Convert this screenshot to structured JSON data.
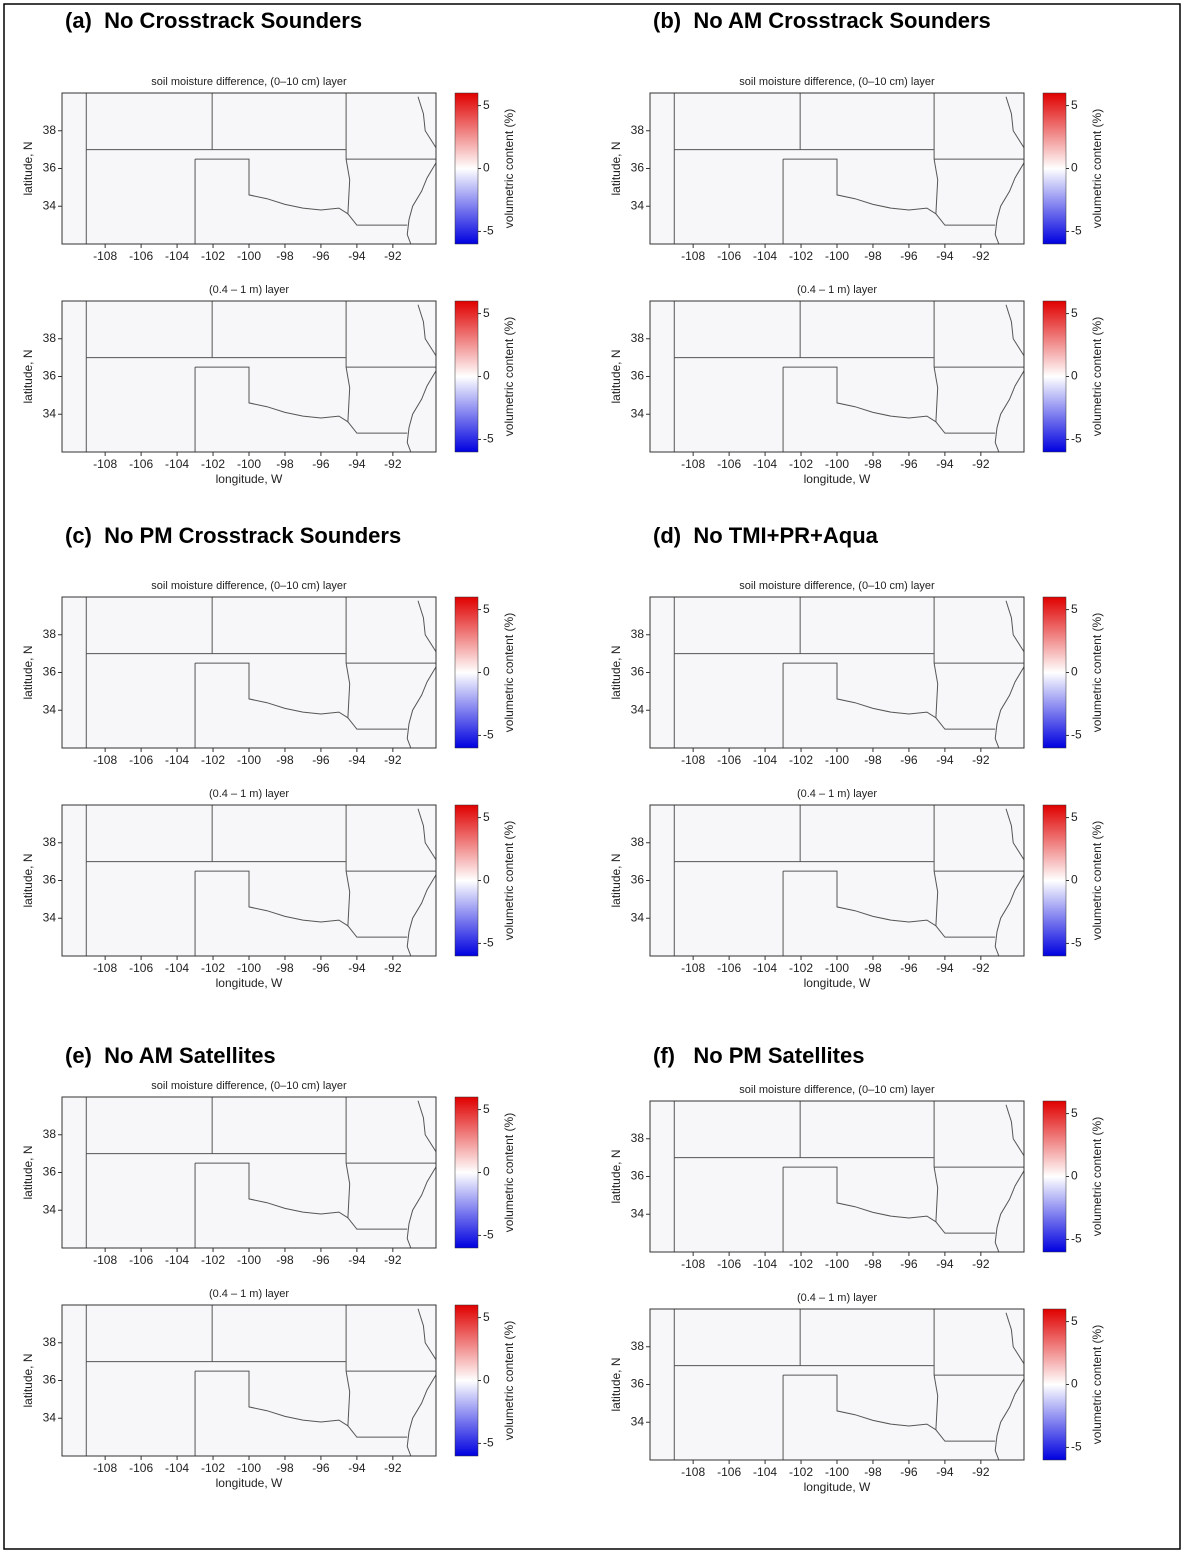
{
  "panels": [
    {
      "title": "(a)  No Crosstrack Sounders",
      "maps": [
        {
          "title": "soil moisture difference, (0–10 cm) layer",
          "ylabel": "latitude, N",
          "xlim": [
            -110.4,
            -89.6
          ],
          "xticks": [
            -108,
            -106,
            -104,
            -102,
            -100,
            -98,
            -96,
            -94,
            -92
          ],
          "ylim": [
            32,
            40
          ],
          "yticks": [
            34,
            36,
            38
          ],
          "colorbar": {
            "label": "volumetric content (%)",
            "lim": [
              -6,
              6
            ],
            "ticks": [
              -5,
              0,
              5
            ]
          }
        },
        {
          "title": "(0.4 – 1 m) layer",
          "ylabel": "latitude, N",
          "xlabel": "longitude, W",
          "xlim": [
            -110.4,
            -89.6
          ],
          "xticks": [
            -108,
            -106,
            -104,
            -102,
            -100,
            -98,
            -96,
            -94,
            -92
          ],
          "ylim": [
            32,
            40
          ],
          "yticks": [
            34,
            36,
            38
          ],
          "colorbar": {
            "label": "volumetric content (%)",
            "lim": [
              -6,
              6
            ],
            "ticks": [
              -5,
              0,
              5
            ]
          }
        }
      ]
    },
    {
      "title": "(b)  No AM Crosstrack Sounders",
      "maps": [
        {
          "title": "soil moisture difference, (0–10 cm) layer",
          "ylabel": "latitude, N",
          "xlim": [
            -110.4,
            -89.6
          ],
          "xticks": [
            -108,
            -106,
            -104,
            -102,
            -100,
            -98,
            -96,
            -94,
            -92
          ],
          "ylim": [
            32,
            40
          ],
          "yticks": [
            34,
            36,
            38
          ],
          "colorbar": {
            "label": "volumetric content (%)",
            "lim": [
              -6,
              6
            ],
            "ticks": [
              -5,
              0,
              5
            ]
          }
        },
        {
          "title": "(0.4 – 1 m) layer",
          "ylabel": "latitude, N",
          "xlabel": "longitude, W",
          "xlim": [
            -110.4,
            -89.6
          ],
          "xticks": [
            -108,
            -106,
            -104,
            -102,
            -100,
            -98,
            -96,
            -94,
            -92
          ],
          "ylim": [
            32,
            40
          ],
          "yticks": [
            34,
            36,
            38
          ],
          "colorbar": {
            "label": "volumetric content (%)",
            "lim": [
              -6,
              6
            ],
            "ticks": [
              -5,
              0,
              5
            ]
          }
        }
      ]
    },
    {
      "title": "(c)  No PM Crosstrack Sounders",
      "maps": [
        {
          "title": "soil moisture difference, (0–10 cm) layer",
          "ylabel": "latitude, N",
          "xlim": [
            -110.4,
            -89.6
          ],
          "xticks": [
            -108,
            -106,
            -104,
            -102,
            -100,
            -98,
            -96,
            -94,
            -92
          ],
          "ylim": [
            32,
            40
          ],
          "yticks": [
            34,
            36,
            38
          ],
          "colorbar": {
            "label": "volumetric content (%)",
            "lim": [
              -6,
              6
            ],
            "ticks": [
              -5,
              0,
              5
            ]
          }
        },
        {
          "title": "(0.4 – 1 m) layer",
          "ylabel": "latitude, N",
          "xlabel": "longitude, W",
          "xlim": [
            -110.4,
            -89.6
          ],
          "xticks": [
            -108,
            -106,
            -104,
            -102,
            -100,
            -98,
            -96,
            -94,
            -92
          ],
          "ylim": [
            32,
            40
          ],
          "yticks": [
            34,
            36,
            38
          ],
          "colorbar": {
            "label": "volumetric content (%)",
            "lim": [
              -6,
              6
            ],
            "ticks": [
              -5,
              0,
              5
            ]
          }
        }
      ]
    },
    {
      "title": "(d)  No TMI+PR+Aqua",
      "maps": [
        {
          "title": "soil moisture difference, (0–10 cm) layer",
          "ylabel": "latitude, N",
          "xlim": [
            -110.4,
            -89.6
          ],
          "xticks": [
            -108,
            -106,
            -104,
            -102,
            -100,
            -98,
            -96,
            -94,
            -92
          ],
          "ylim": [
            32,
            40
          ],
          "yticks": [
            34,
            36,
            38
          ],
          "colorbar": {
            "label": "volumetric content (%)",
            "lim": [
              -6,
              6
            ],
            "ticks": [
              -5,
              0,
              5
            ]
          }
        },
        {
          "title": "(0.4 – 1 m) layer",
          "ylabel": "latitude, N",
          "xlabel": "longitude, W",
          "xlim": [
            -110.4,
            -89.6
          ],
          "xticks": [
            -108,
            -106,
            -104,
            -102,
            -100,
            -98,
            -96,
            -94,
            -92
          ],
          "ylim": [
            32,
            40
          ],
          "yticks": [
            34,
            36,
            38
          ],
          "colorbar": {
            "label": "volumetric content (%)",
            "lim": [
              -6,
              6
            ],
            "ticks": [
              -5,
              0,
              5
            ]
          }
        }
      ]
    },
    {
      "title": "(e)  No AM Satellites",
      "maps": [
        {
          "title": "soil moisture difference, (0–10 cm) layer",
          "ylabel": "latitude, N",
          "xlim": [
            -110.4,
            -89.6
          ],
          "xticks": [
            -108,
            -106,
            -104,
            -102,
            -100,
            -98,
            -96,
            -94,
            -92
          ],
          "ylim": [
            32,
            40
          ],
          "yticks": [
            34,
            36,
            38
          ],
          "colorbar": {
            "label": "volumetric content (%)",
            "lim": [
              -6,
              6
            ],
            "ticks": [
              -5,
              0,
              5
            ]
          }
        },
        {
          "title": "(0.4 – 1 m) layer",
          "ylabel": "latitude, N",
          "xlabel": "longitude, W",
          "xlim": [
            -110.4,
            -89.6
          ],
          "xticks": [
            -108,
            -106,
            -104,
            -102,
            -100,
            -98,
            -96,
            -94,
            -92
          ],
          "ylim": [
            32,
            40
          ],
          "yticks": [
            34,
            36,
            38
          ],
          "colorbar": {
            "label": "volumetric content (%)",
            "lim": [
              -6,
              6
            ],
            "ticks": [
              -5,
              0,
              5
            ]
          }
        }
      ]
    },
    {
      "title": "(f)   No PM Satellites",
      "maps": [
        {
          "title": "soil moisture difference, (0–10 cm) layer",
          "ylabel": "latitude, N",
          "xlim": [
            -110.4,
            -89.6
          ],
          "xticks": [
            -108,
            -106,
            -104,
            -102,
            -100,
            -98,
            -96,
            -94,
            -92
          ],
          "ylim": [
            32,
            40
          ],
          "yticks": [
            34,
            36,
            38
          ],
          "colorbar": {
            "label": "volumetric content (%)",
            "lim": [
              -6,
              6
            ],
            "ticks": [
              -5,
              0,
              5
            ]
          }
        },
        {
          "title": "(0.4 – 1 m) layer",
          "ylabel": "latitude, N",
          "xlabel": "longitude, W",
          "xlim": [
            -110.4,
            -89.6
          ],
          "xticks": [
            -108,
            -106,
            -104,
            -102,
            -100,
            -98,
            -96,
            -94,
            -92
          ],
          "ylim": [
            32,
            40
          ],
          "yticks": [
            34,
            36,
            38
          ],
          "colorbar": {
            "label": "volumetric content (%)",
            "lim": [
              -6,
              6
            ],
            "ticks": [
              -5,
              0,
              5
            ]
          }
        }
      ]
    }
  ]
}
